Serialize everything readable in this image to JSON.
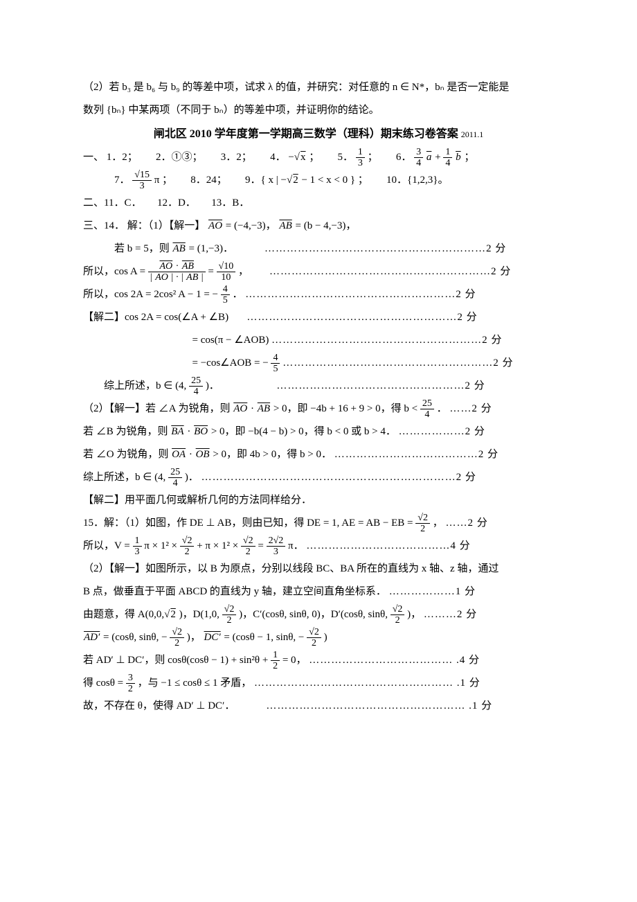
{
  "intro": {
    "p1": "（2）若 b₃ 是 b₆ 与 b₉ 的等差中项，试求 λ 的值，并研究：对任意的 n ∈ N*，bₙ 是否一定能是",
    "p2": "数列 {bₙ} 中某两项（不同于 bₙ）的等差中项，并证明你的结论。"
  },
  "title": {
    "text": "闸北区 2010 学年度第一学期高三数学（理科）期末练习卷答案",
    "date": "2011.1"
  },
  "sec1": {
    "label": "一、",
    "a1_pre": "1．2；",
    "a2_pre": "2．①③；",
    "a3_pre": "3．2；",
    "a4_pre": "4．",
    "a4_expr_neg": "−",
    "a4_expr_sqrt": "x",
    "a4_post": "；",
    "a5_pre": "5．",
    "a5_num": "1",
    "a5_den": "3",
    "a5_post": "；",
    "a6_pre": "6．",
    "a6_n1": "3",
    "a6_d1": "4",
    "a6_v1": "a",
    "a6_plus": " + ",
    "a6_n2": "1",
    "a6_d2": "4",
    "a6_v2": "b",
    "a6_post": "；",
    "a7_pre": "7．",
    "a7_num": "√15",
    "a7_den": "3",
    "a7_pi": " π ；",
    "a8": "8．24；",
    "a9_pre": "9．{ x | −",
    "a9_sqrt": "2",
    "a9_post": " − 1 < x < 0 } ；",
    "a10": "10．{1,2,3}。"
  },
  "sec2": {
    "text": "二、11．C．　　12．D．　　13．B．"
  },
  "sec3": {
    "label": "三、14．",
    "l1a": "解：（1）【解一】",
    "l1b": "AO",
    "l1c": " = (−4,−3)，",
    "l1d": "AB",
    "l1e": " = (b − 4,−3)，",
    "l2a": "若 b = 5，则 ",
    "l2b": "AB",
    "l2c": " = (1,−3)．",
    "l2dots": "……………………………………………………2 分",
    "l3a": "所以，cos A = ",
    "l3num1": "AO",
    "l3num2": "AB",
    "l3den1": "AO",
    "l3den2": "AB",
    "l3eq": " = ",
    "l3n": "√10",
    "l3d": "10",
    "l3comma": "，",
    "l3dots": "……………………………………………………2 分",
    "l4a": "所以，cos 2A = 2cos² A − 1 = −",
    "l4n": "4",
    "l4d": "5",
    "l4dot": "．",
    "l4dots": "…………………………………………………2 分",
    "l5a": "【解二】cos 2A = cos(∠A + ∠B)",
    "l5dots": "…………………………………………………2 分",
    "l6a": "= cos(π − ∠AOB)",
    "l6dots": "…………………………………………………2 分",
    "l7a": "= −cos∠AOB = −",
    "l7n": "4",
    "l7d": "5",
    "l7dots": "…………………………………………………2 分",
    "l8a": "综上所述，b ∈ (4, ",
    "l8n": "25",
    "l8d": "4",
    "l8b": ")．",
    "l8dots": "……………………………………………2 分",
    "l9a": "（2）【解一】若 ∠A 为锐角，则 ",
    "l9v1": "AO",
    "l9dot": " · ",
    "l9v2": "AB",
    "l9b": " > 0，即 −4b + 16 + 9 > 0，得 b < ",
    "l9n": "25",
    "l9d": "4",
    "l9c": "．",
    "l9dots": "……2 分",
    "l10a": "若 ∠B 为锐角，则 ",
    "l10v1": "BA",
    "l10dot": " · ",
    "l10v2": "BO",
    "l10b": " > 0，即 −b(4 − b) > 0，得 b < 0 或 b > 4．",
    "l10dots": "………………2 分",
    "l11a": "若 ∠O 为锐角，则 ",
    "l11v1": "OA",
    "l11dot": " · ",
    "l11v2": "OB",
    "l11b": " > 0，即 4b > 0，得 b > 0．",
    "l11dots": "…………………………………2 分",
    "l12a": "综上所述，b ∈ (4, ",
    "l12n": "25",
    "l12d": "4",
    "l12b": ")．",
    "l12dots": "……………………………………………………………2 分",
    "l13": "【解二】用平面几何或解析几何的方法同样给分．"
  },
  "q15": {
    "l1a": "15．解：（1）如图，作 DE ⊥ AB，则由已知，得 DE = 1, AE = AB − EB = ",
    "l1n": "√2",
    "l1d": "2",
    "l1c": "，",
    "l1dots": "……2 分",
    "l2a": "所以，V = ",
    "l2f1n": "1",
    "l2f1d": "3",
    "l2b": " π × 1² × ",
    "l2f2n": "√2",
    "l2f2d": "2",
    "l2c": " + π × 1² × ",
    "l2f3n": "√2",
    "l2f3d": "2",
    "l2d": " = ",
    "l2f4n": "2√2",
    "l2f4d": "3",
    "l2e": " π．",
    "l2dots": "…………………………………4 分",
    "l3": "（2）【解一】如图所示，以 B 为原点，分别以线段 BC、BA 所在的直线为 x 轴、z 轴，通过",
    "l4a": "B 点，做垂直于平面 ABCD 的直线为 y 轴，建立空间直角坐标系．",
    "l4dots": "………………1 分",
    "l5a": "由题意，得 A(0,0,",
    "l5sqrt2a": "2",
    "l5b": ")，D(1,0,",
    "l5fn": "√2",
    "l5fd": "2",
    "l5c": ")，C′(cosθ, sinθ, 0)，D′(cosθ, sinθ, ",
    "l5fn2": "√2",
    "l5fd2": "2",
    "l5d": ")，",
    "l5dots": "………2 分",
    "l6v1": "AD′",
    "l6a": " = (cosθ, sinθ, −",
    "l6fn": "√2",
    "l6fd": "2",
    "l6b": ")，",
    "l6v2": "DC′",
    "l6c": " = (cosθ − 1, sinθ, −",
    "l6fn2": "√2",
    "l6fd2": "2",
    "l6d": ")",
    "l7a": "若 AD′ ⊥ DC′，则 cosθ(cosθ − 1) + sin²θ + ",
    "l7fn": "1",
    "l7fd": "2",
    "l7b": " = 0，",
    "l7dots": "………………………………… .4 分",
    "l8a": "得 cosθ = ",
    "l8fn": "3",
    "l8fd": "2",
    "l8b": "，与 −1 ≤ cosθ ≤ 1 矛盾，",
    "l8dots": "……………………………………………… .1 分",
    "l9a": "故，不存在 θ，使得 AD′ ⊥ DC′．",
    "l9dots": "……………………………………………… .1 分"
  }
}
